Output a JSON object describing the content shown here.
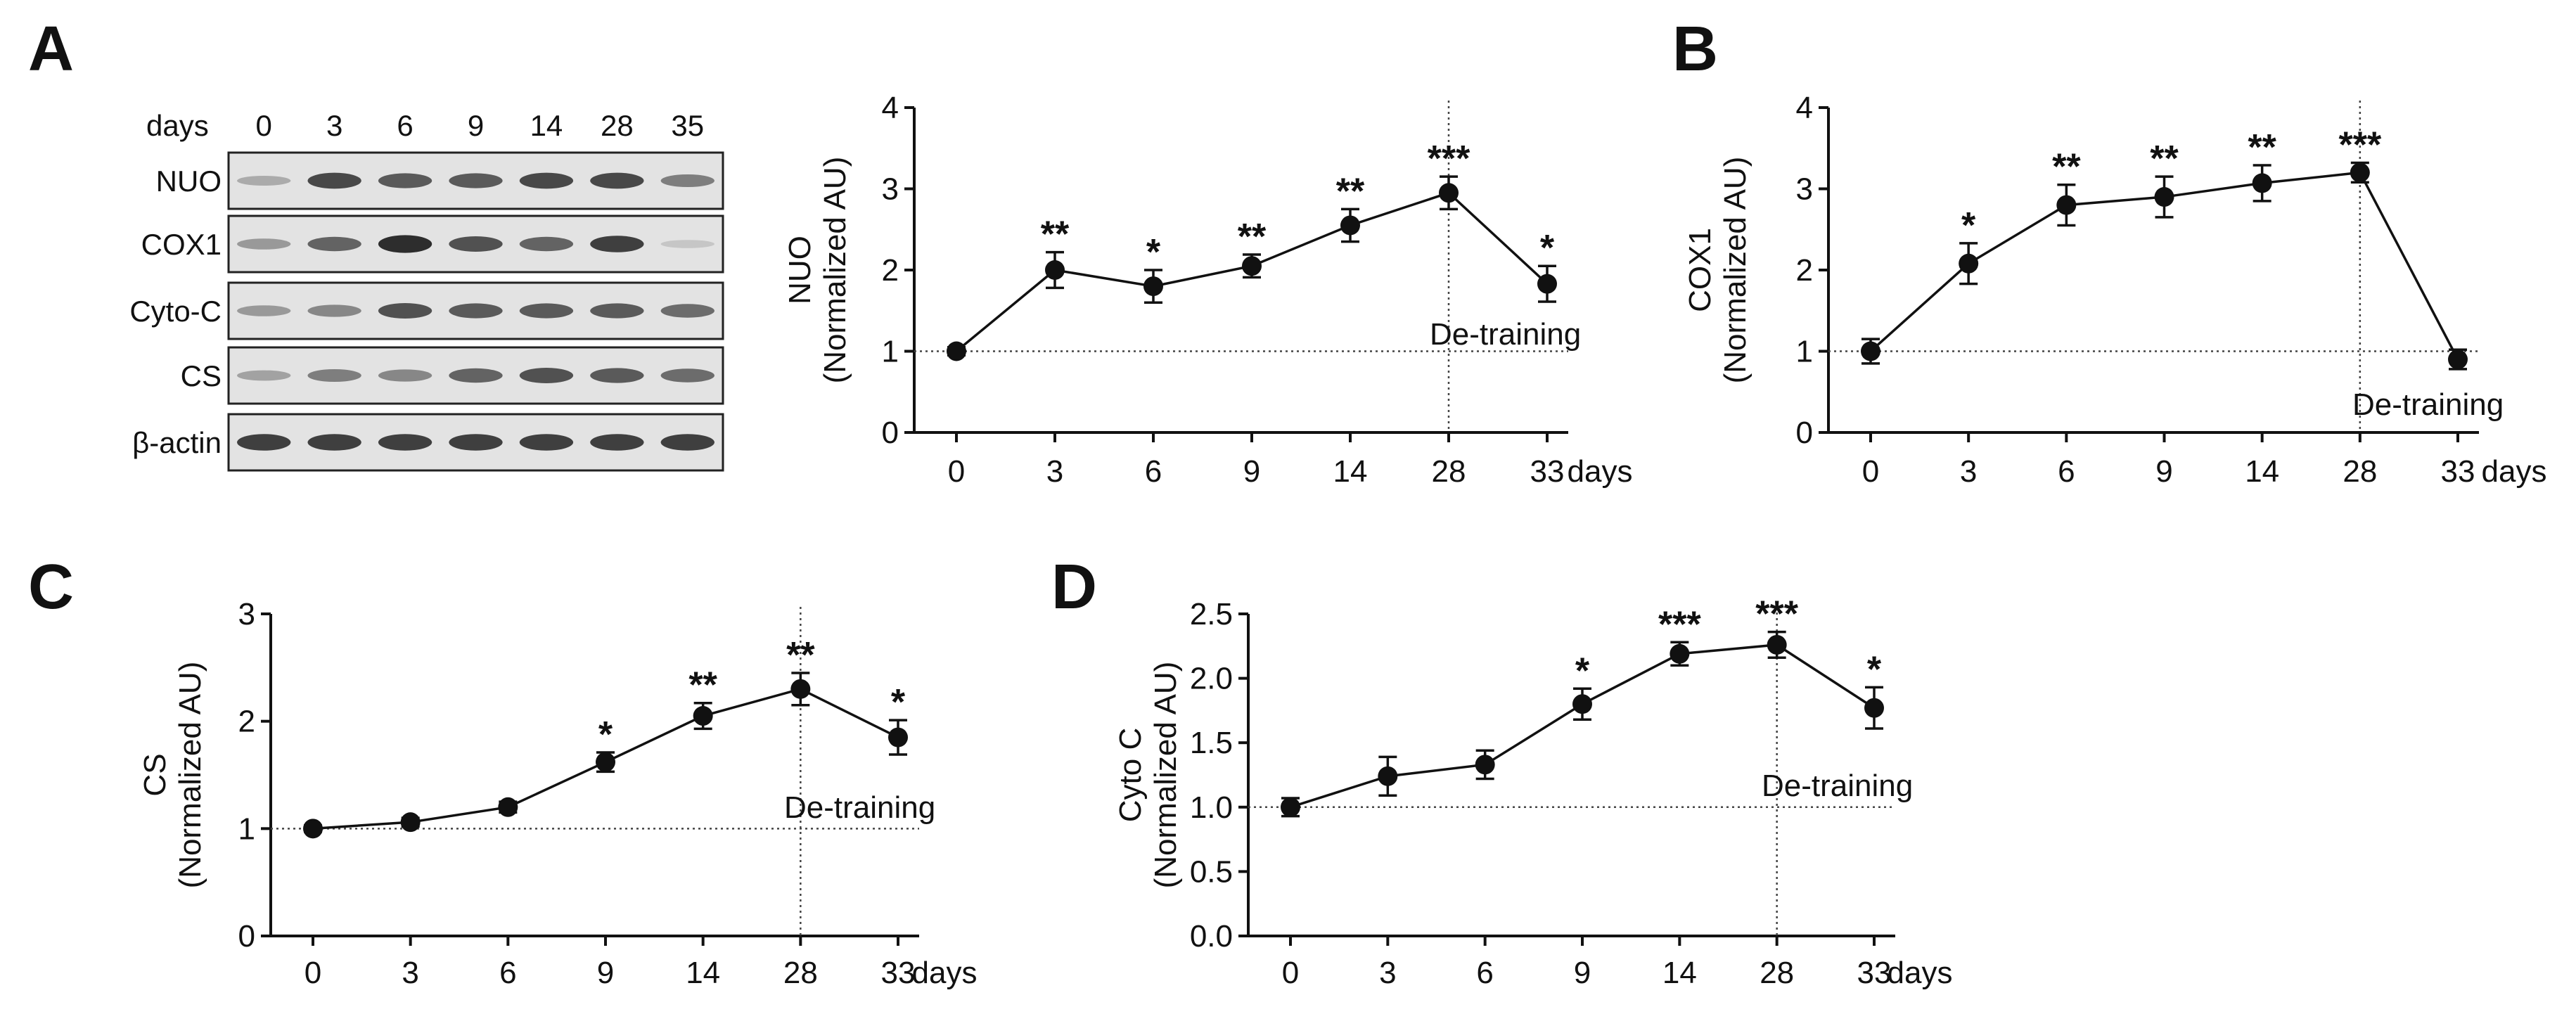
{
  "figure": {
    "panels": [
      {
        "letter": "A"
      },
      {
        "letter": "B"
      },
      {
        "letter": "C"
      },
      {
        "letter": "D"
      }
    ]
  },
  "blot": {
    "days_label": "days",
    "lanes": [
      "0",
      "3",
      "6",
      "9",
      "14",
      "28",
      "35"
    ],
    "rows": [
      {
        "label": "NUO",
        "intensity": [
          0.25,
          0.8,
          0.7,
          0.7,
          0.8,
          0.8,
          0.5
        ]
      },
      {
        "label": "COX1",
        "intensity": [
          0.35,
          0.65,
          0.95,
          0.75,
          0.65,
          0.85,
          0.1
        ]
      },
      {
        "label": "Cyto-C",
        "intensity": [
          0.35,
          0.45,
          0.75,
          0.7,
          0.7,
          0.7,
          0.6
        ]
      },
      {
        "label": "CS",
        "intensity": [
          0.3,
          0.5,
          0.45,
          0.65,
          0.75,
          0.7,
          0.6
        ]
      },
      {
        "label": "β-actin",
        "intensity": [
          0.85,
          0.85,
          0.85,
          0.85,
          0.85,
          0.85,
          0.85
        ]
      }
    ]
  },
  "chart_data": [
    {
      "type": "line",
      "panel": "A",
      "categories": [
        "0",
        "3",
        "6",
        "9",
        "14",
        "28",
        "33"
      ],
      "values": [
        1.0,
        2.0,
        1.8,
        2.05,
        2.55,
        2.95,
        1.83
      ],
      "errors": [
        0.05,
        0.22,
        0.2,
        0.14,
        0.2,
        0.2,
        0.22
      ],
      "significance": [
        "",
        "**",
        "*",
        "**",
        "**",
        "***",
        "*"
      ],
      "ylabel_line1": "NUO",
      "ylabel_line2": "(Normalized AU)",
      "xlabel": "days",
      "ylim": [
        0,
        4
      ],
      "yticks": [
        "0",
        "1",
        "2",
        "3",
        "4"
      ],
      "ytick_values": [
        0,
        1,
        2,
        3,
        4
      ],
      "baseline": 1,
      "annotation": "De-training",
      "vline_category": "28"
    },
    {
      "type": "line",
      "panel": "B",
      "categories": [
        "0",
        "3",
        "6",
        "9",
        "14",
        "28",
        "33"
      ],
      "values": [
        1.0,
        2.08,
        2.8,
        2.9,
        3.07,
        3.2,
        0.9
      ],
      "errors": [
        0.15,
        0.25,
        0.25,
        0.25,
        0.22,
        0.12,
        0.12
      ],
      "significance": [
        "",
        "*",
        "**",
        "**",
        "**",
        "***",
        ""
      ],
      "ylabel_line1": "COX1",
      "ylabel_line2": "(Normalized AU)",
      "xlabel": "days",
      "ylim": [
        0,
        4
      ],
      "yticks": [
        "0",
        "1",
        "2",
        "3",
        "4"
      ],
      "ytick_values": [
        0,
        1,
        2,
        3,
        4
      ],
      "baseline": 1,
      "annotation": "De-training",
      "vline_category": "28"
    },
    {
      "type": "line",
      "panel": "C",
      "categories": [
        "0",
        "3",
        "6",
        "9",
        "14",
        "28",
        "33"
      ],
      "values": [
        1.0,
        1.06,
        1.2,
        1.62,
        2.05,
        2.3,
        1.85
      ],
      "errors": [
        0.03,
        0.04,
        0.05,
        0.09,
        0.12,
        0.15,
        0.16
      ],
      "significance": [
        "",
        "",
        "",
        "*",
        "**",
        "**",
        "*"
      ],
      "ylabel_line1": "CS",
      "ylabel_line2": "(Normalized AU)",
      "xlabel": "days",
      "ylim": [
        0,
        3
      ],
      "yticks": [
        "0",
        "1",
        "2",
        "3"
      ],
      "ytick_values": [
        0,
        1,
        2,
        3
      ],
      "baseline": 1,
      "annotation": "De-training",
      "vline_category": "28"
    },
    {
      "type": "line",
      "panel": "D",
      "categories": [
        "0",
        "3",
        "6",
        "9",
        "14",
        "28",
        "33"
      ],
      "values": [
        1.0,
        1.24,
        1.33,
        1.8,
        2.19,
        2.26,
        1.77
      ],
      "errors": [
        0.07,
        0.15,
        0.11,
        0.12,
        0.09,
        0.1,
        0.16
      ],
      "significance": [
        "",
        "",
        "",
        "*",
        "***",
        "***",
        "*"
      ],
      "ylabel_line1": "Cyto C",
      "ylabel_line2": "(Normalized AU)",
      "xlabel": "days",
      "ylim": [
        0,
        2.5
      ],
      "yticks": [
        "0.0",
        "0.5",
        "1.0",
        "1.5",
        "2.0",
        "2.5"
      ],
      "ytick_values": [
        0,
        0.5,
        1.0,
        1.5,
        2.0,
        2.5
      ],
      "baseline": 1,
      "annotation": "De-training",
      "vline_category": "28"
    }
  ]
}
